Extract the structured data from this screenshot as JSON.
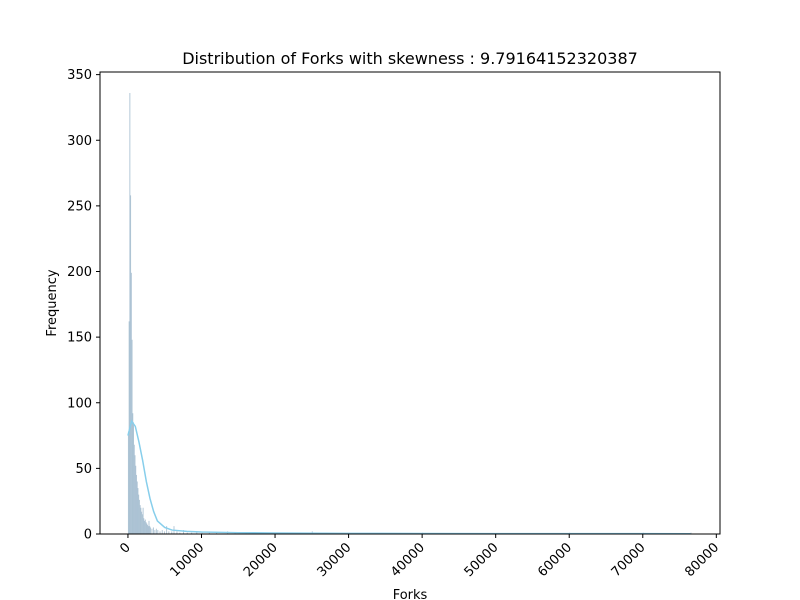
{
  "chart_data": {
    "type": "bar",
    "subtype": "histogram-with-kde",
    "title": "Distribution of Forks with skewness : 9.79164152320387",
    "xlabel": "Forks",
    "ylabel": "Frequency",
    "xlim": [
      -3800,
      80500
    ],
    "ylim": [
      0,
      352
    ],
    "x_ticks": [
      0,
      10000,
      20000,
      30000,
      40000,
      50000,
      60000,
      70000,
      80000
    ],
    "x_tick_labels": [
      "0",
      "10000",
      "20000",
      "30000",
      "40000",
      "50000",
      "60000",
      "70000",
      "80000"
    ],
    "x_tick_rotation": 45,
    "y_ticks": [
      0,
      50,
      100,
      150,
      200,
      250,
      300,
      350
    ],
    "y_tick_labels": [
      "0",
      "50",
      "100",
      "150",
      "200",
      "250",
      "300",
      "350"
    ],
    "grid": false,
    "bar_color": "#9fb9cc",
    "kde_color": "#87ceeb",
    "bins": [
      {
        "x": 0,
        "count": 78
      },
      {
        "x": 100,
        "count": 162
      },
      {
        "x": 200,
        "count": 336
      },
      {
        "x": 300,
        "count": 258
      },
      {
        "x": 400,
        "count": 199
      },
      {
        "x": 500,
        "count": 148
      },
      {
        "x": 600,
        "count": 92
      },
      {
        "x": 700,
        "count": 85
      },
      {
        "x": 800,
        "count": 68
      },
      {
        "x": 900,
        "count": 60
      },
      {
        "x": 1000,
        "count": 52
      },
      {
        "x": 1100,
        "count": 45
      },
      {
        "x": 1200,
        "count": 40
      },
      {
        "x": 1300,
        "count": 35
      },
      {
        "x": 1400,
        "count": 30
      },
      {
        "x": 1500,
        "count": 26
      },
      {
        "x": 1600,
        "count": 22
      },
      {
        "x": 1700,
        "count": 20
      },
      {
        "x": 1800,
        "count": 17
      },
      {
        "x": 1900,
        "count": 15
      },
      {
        "x": 2000,
        "count": 20
      },
      {
        "x": 2100,
        "count": 12
      },
      {
        "x": 2200,
        "count": 10
      },
      {
        "x": 2300,
        "count": 11
      },
      {
        "x": 2400,
        "count": 9
      },
      {
        "x": 2500,
        "count": 8
      },
      {
        "x": 2600,
        "count": 7
      },
      {
        "x": 2700,
        "count": 6
      },
      {
        "x": 2800,
        "count": 10
      },
      {
        "x": 2900,
        "count": 6
      },
      {
        "x": 3000,
        "count": 5
      },
      {
        "x": 3200,
        "count": 4
      },
      {
        "x": 3400,
        "count": 5
      },
      {
        "x": 3600,
        "count": 3
      },
      {
        "x": 3800,
        "count": 4
      },
      {
        "x": 4000,
        "count": 3
      },
      {
        "x": 4300,
        "count": 2
      },
      {
        "x": 4600,
        "count": 3
      },
      {
        "x": 4900,
        "count": 2
      },
      {
        "x": 5200,
        "count": 6
      },
      {
        "x": 5500,
        "count": 2
      },
      {
        "x": 5900,
        "count": 2
      },
      {
        "x": 6200,
        "count": 6
      },
      {
        "x": 6600,
        "count": 2
      },
      {
        "x": 7000,
        "count": 1
      },
      {
        "x": 7500,
        "count": 3
      },
      {
        "x": 8000,
        "count": 1
      },
      {
        "x": 8600,
        "count": 1
      },
      {
        "x": 9300,
        "count": 2
      },
      {
        "x": 10000,
        "count": 1
      },
      {
        "x": 11000,
        "count": 1
      },
      {
        "x": 12000,
        "count": 1
      },
      {
        "x": 13500,
        "count": 2
      },
      {
        "x": 14500,
        "count": 1
      },
      {
        "x": 16000,
        "count": 1
      },
      {
        "x": 19000,
        "count": 1
      },
      {
        "x": 20000,
        "count": 1
      },
      {
        "x": 25000,
        "count": 2
      },
      {
        "x": 30000,
        "count": 1
      },
      {
        "x": 40000,
        "count": 1
      },
      {
        "x": 60000,
        "count": 1
      },
      {
        "x": 70000,
        "count": 1
      },
      {
        "x": 76500,
        "count": 1
      }
    ],
    "kde": [
      {
        "x": 0,
        "y": 75
      },
      {
        "x": 500,
        "y": 86
      },
      {
        "x": 1000,
        "y": 82
      },
      {
        "x": 1500,
        "y": 70
      },
      {
        "x": 2000,
        "y": 56
      },
      {
        "x": 2500,
        "y": 40
      },
      {
        "x": 3000,
        "y": 27
      },
      {
        "x": 3500,
        "y": 17
      },
      {
        "x": 4000,
        "y": 10
      },
      {
        "x": 5000,
        "y": 5
      },
      {
        "x": 6000,
        "y": 3
      },
      {
        "x": 8000,
        "y": 2
      },
      {
        "x": 10000,
        "y": 1.5
      },
      {
        "x": 15000,
        "y": 1
      },
      {
        "x": 20000,
        "y": 0.8
      },
      {
        "x": 30000,
        "y": 0.5
      },
      {
        "x": 40000,
        "y": 0.4
      },
      {
        "x": 50000,
        "y": 0.3
      },
      {
        "x": 60000,
        "y": 0.3
      },
      {
        "x": 70000,
        "y": 0.3
      },
      {
        "x": 76500,
        "y": 0.2
      }
    ]
  }
}
